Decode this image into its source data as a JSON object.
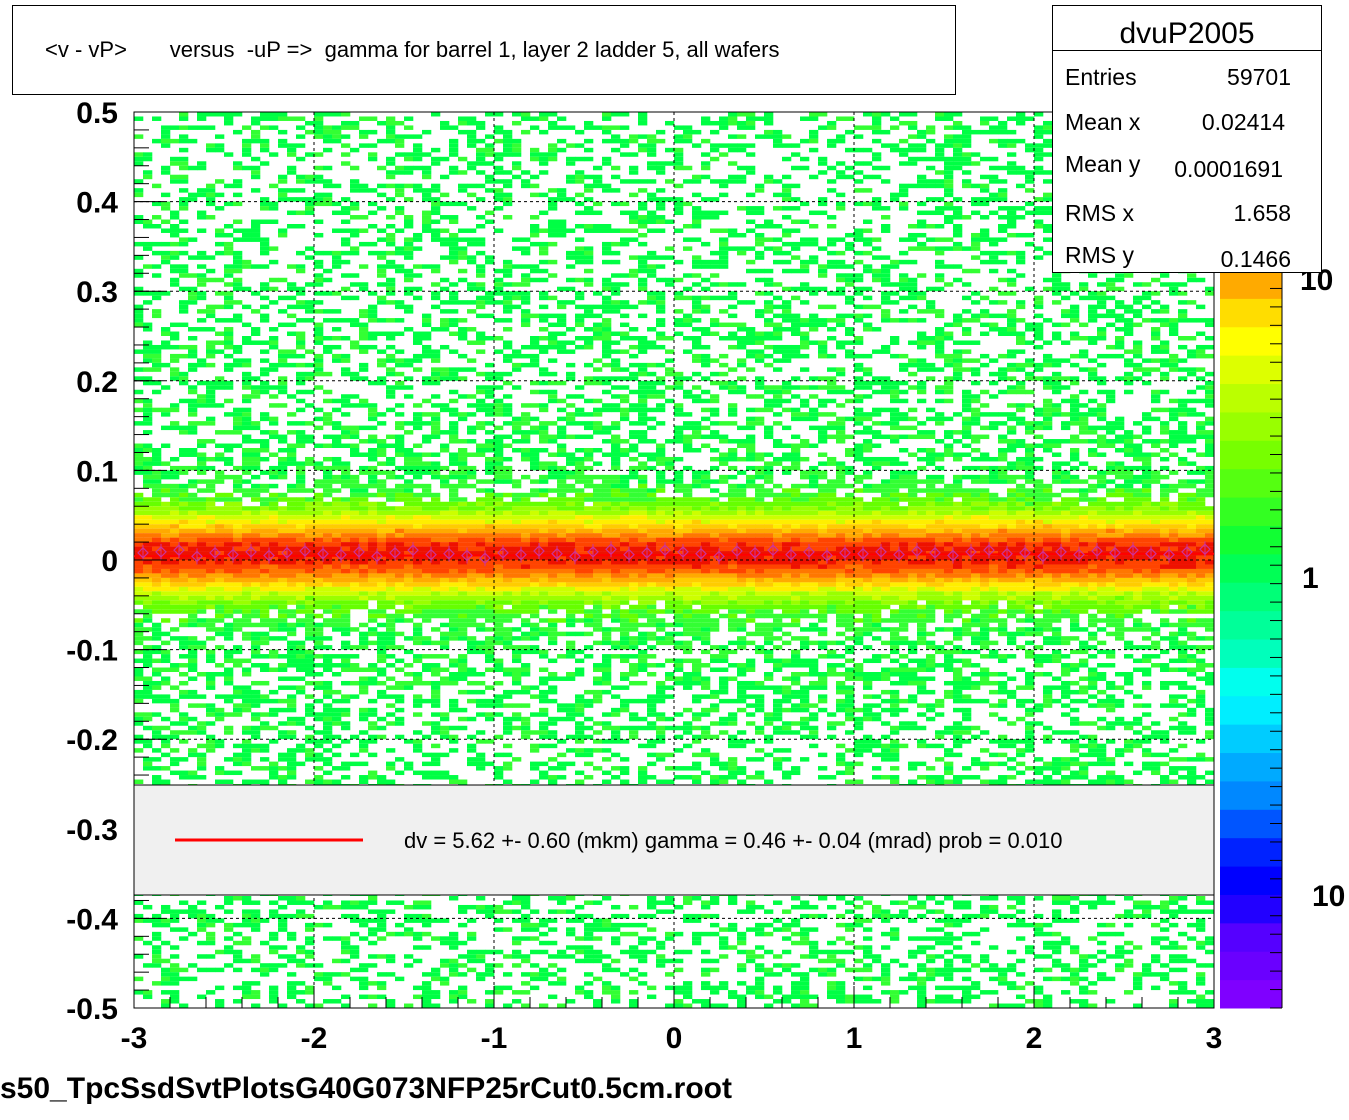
{
  "title": "<v - vP>       versus  -uP =>  gamma for barrel 1, layer 2 ladder 5, all wafers",
  "stats": {
    "name": "dvuP2005",
    "rows": [
      {
        "label": "Entries",
        "value": "59701"
      },
      {
        "label": "Mean x",
        "value": "0.02414"
      },
      {
        "label": "Mean y",
        "value": "0.0001691"
      },
      {
        "label": "RMS x",
        "value": "1.658"
      },
      {
        "label": "RMS y",
        "value": "0.1466"
      }
    ]
  },
  "legend": {
    "text": "dv =    5.62 +-  0.60 (mkm) gamma =    0.46 +-  0.04 (mrad) prob = 0.010",
    "line_color": "#ff0000"
  },
  "footer": "s50_TpcSsdSvtPlotsG40G073NFP25rCut0.5cm.root",
  "colorbar": {
    "labels": [
      "10",
      "1",
      "10"
    ]
  },
  "chart_data": {
    "type": "heatmap",
    "xlim": [
      -3,
      3
    ],
    "ylim": [
      -0.5,
      0.5
    ],
    "x_ticks": [
      -3,
      -2,
      -1,
      0,
      1,
      2,
      3
    ],
    "x_tick_labels": [
      "-3",
      "-2",
      "-1",
      "0",
      "1",
      "2",
      "3"
    ],
    "y_ticks": [
      -0.5,
      -0.4,
      -0.3,
      -0.2,
      -0.1,
      0,
      0.1,
      0.2,
      0.3,
      0.4,
      0.5
    ],
    "y_tick_labels": [
      "-0.5",
      "-0.4",
      "-0.3",
      "-0.2",
      "-0.1",
      "0",
      "0.1",
      "0.2",
      "0.3",
      "0.4",
      "0.5"
    ],
    "grid": true,
    "band_center": 0.006,
    "band_sigma": 0.03,
    "profile": {
      "x": [
        -2.95,
        -2.85,
        -2.75,
        -2.65,
        -2.55,
        -2.45,
        -2.35,
        -2.25,
        -2.15,
        -2.05,
        -1.95,
        -1.85,
        -1.75,
        -1.65,
        -1.55,
        -1.45,
        -1.35,
        -1.25,
        -1.15,
        -1.05,
        -0.95,
        -0.85,
        -0.75,
        -0.65,
        -0.55,
        -0.45,
        -0.35,
        -0.25,
        -0.15,
        -0.05,
        0.05,
        0.15,
        0.25,
        0.35,
        0.45,
        0.55,
        0.65,
        0.75,
        0.85,
        0.95,
        1.05,
        1.15,
        1.25,
        1.35,
        1.45,
        1.55,
        1.65,
        1.75,
        1.85,
        1.95,
        2.05,
        2.15,
        2.25,
        2.35,
        2.45,
        2.55,
        2.65,
        2.75,
        2.85,
        2.95
      ],
      "y": [
        0.008,
        0.009,
        0.011,
        0.004,
        0.008,
        0.006,
        0.009,
        0.005,
        0.008,
        0.01,
        0.007,
        0.006,
        0.009,
        0.004,
        0.008,
        0.011,
        0.006,
        0.007,
        0.005,
        0.002,
        0.008,
        0.006,
        0.01,
        0.007,
        0.004,
        0.009,
        0.012,
        0.006,
        0.008,
        0.011,
        0.009,
        0.007,
        0.004,
        0.01,
        0.008,
        0.011,
        0.006,
        0.009,
        0.005,
        0.008,
        0.007,
        0.009,
        0.006,
        0.01,
        0.008,
        0.005,
        0.009,
        0.011,
        0.007,
        0.008,
        0.004,
        0.009,
        0.006,
        0.01,
        0.008,
        0.011,
        0.007,
        0.006,
        0.009,
        0.012
      ]
    },
    "fit_line": {
      "intercept": 0.0056,
      "slope": 0.00046
    }
  }
}
